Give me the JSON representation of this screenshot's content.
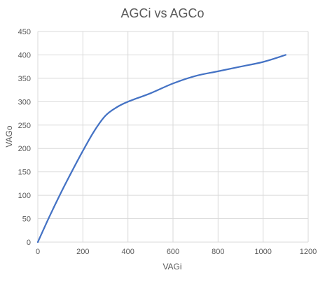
{
  "chart_data": {
    "type": "line",
    "title": "AGCi vs AGCo",
    "xlabel": "VAGi",
    "ylabel": "VAGo",
    "xlim": [
      0,
      1200
    ],
    "ylim": [
      0,
      450
    ],
    "x_ticks": [
      0,
      200,
      400,
      600,
      800,
      1000,
      1200
    ],
    "y_ticks": [
      0,
      50,
      100,
      150,
      200,
      250,
      300,
      350,
      400,
      450
    ],
    "grid": true,
    "legend": "none",
    "series": [
      {
        "color": "#4472C4",
        "x": [
          0,
          50,
          100,
          150,
          200,
          250,
          300,
          350,
          400,
          500,
          600,
          700,
          800,
          900,
          1000,
          1100
        ],
        "y": [
          0,
          53,
          103,
          150,
          195,
          237,
          270,
          288,
          300,
          318,
          339,
          355,
          365,
          375,
          385,
          400
        ]
      }
    ]
  },
  "colors": {
    "grid": "#D9D9D9",
    "axis_text": "#595959",
    "line": "#4472C4"
  }
}
